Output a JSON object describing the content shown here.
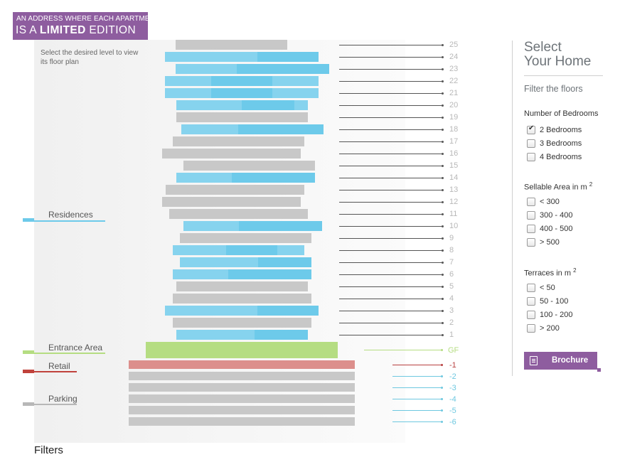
{
  "logo": {
    "line1": "AN ADDRESS WHERE EACH APARTMENT",
    "line2_pre": "IS A ",
    "line2_bold": "LIMITED",
    "line2_post": " EDITION"
  },
  "hint": "Select the desired level to view its floor plan",
  "colors": {
    "inactive": "#c8c8c8",
    "highlight": "#6dcaea",
    "highlight_alt": "#86d3ee",
    "entrance": "#b5dd82",
    "retail": "#dc8f8c",
    "retail_line": "#b84040",
    "parking_line": "#6ec8e0",
    "brand": "#8e5d9f",
    "floor_number": "#b8b8b8",
    "parking_number": "#6ec8e0"
  },
  "zones": [
    {
      "label": "Residences",
      "color": "#6dcaea"
    },
    {
      "label": "Entrance Area",
      "color": "#b5dd82"
    },
    {
      "label": "Retail",
      "color": "#c0423c"
    },
    {
      "label": "Parking",
      "color": "#b8b8b8"
    }
  ],
  "floors": [
    {
      "label": "25",
      "highlighted": false
    },
    {
      "label": "24",
      "highlighted": true
    },
    {
      "label": "23",
      "highlighted": true
    },
    {
      "label": "22",
      "highlighted": true
    },
    {
      "label": "21",
      "highlighted": true
    },
    {
      "label": "20",
      "highlighted": true
    },
    {
      "label": "19",
      "highlighted": false
    },
    {
      "label": "18",
      "highlighted": true
    },
    {
      "label": "17",
      "highlighted": false
    },
    {
      "label": "16",
      "highlighted": false
    },
    {
      "label": "15",
      "highlighted": false
    },
    {
      "label": "14",
      "highlighted": true
    },
    {
      "label": "13",
      "highlighted": false
    },
    {
      "label": "12",
      "highlighted": false
    },
    {
      "label": "11",
      "highlighted": false
    },
    {
      "label": "10",
      "highlighted": true
    },
    {
      "label": "9",
      "highlighted": false
    },
    {
      "label": "8",
      "highlighted": true
    },
    {
      "label": "7",
      "highlighted": true
    },
    {
      "label": "6",
      "highlighted": true
    },
    {
      "label": "5",
      "highlighted": false
    },
    {
      "label": "4",
      "highlighted": false
    },
    {
      "label": "3",
      "highlighted": true
    },
    {
      "label": "2",
      "highlighted": false
    },
    {
      "label": "1",
      "highlighted": true
    }
  ],
  "ground": {
    "label": "GF"
  },
  "basement": [
    {
      "label": "-1",
      "type": "retail"
    },
    {
      "label": "-2",
      "type": "parking"
    },
    {
      "label": "-3",
      "type": "parking"
    },
    {
      "label": "-4",
      "type": "parking"
    },
    {
      "label": "-5",
      "type": "parking"
    },
    {
      "label": "-6",
      "type": "parking"
    }
  ],
  "caption": "Filters",
  "sidebar": {
    "title_line1": "Select",
    "title_line2": "Your Home",
    "subtitle": "Filter the floors",
    "groups": [
      {
        "title": "Number of Bedrooms",
        "sup": "",
        "options": [
          {
            "label": "2 Bedrooms",
            "checked": true
          },
          {
            "label": "3 Bedrooms",
            "checked": false
          },
          {
            "label": "4 Bedrooms",
            "checked": false
          }
        ]
      },
      {
        "title": "Sellable Area in m",
        "sup": "2",
        "options": [
          {
            "label": "< 300",
            "checked": false
          },
          {
            "label": "300 - 400",
            "checked": false
          },
          {
            "label": "400 - 500",
            "checked": false
          },
          {
            "label": "> 500",
            "checked": false
          }
        ]
      },
      {
        "title": "Terraces in m",
        "sup": "2",
        "options": [
          {
            "label": "< 50",
            "checked": false
          },
          {
            "label": "50 - 100",
            "checked": false
          },
          {
            "label": "100 - 200",
            "checked": false
          },
          {
            "label": "> 200",
            "checked": false
          }
        ]
      }
    ],
    "brochure_label": "Brochure"
  }
}
